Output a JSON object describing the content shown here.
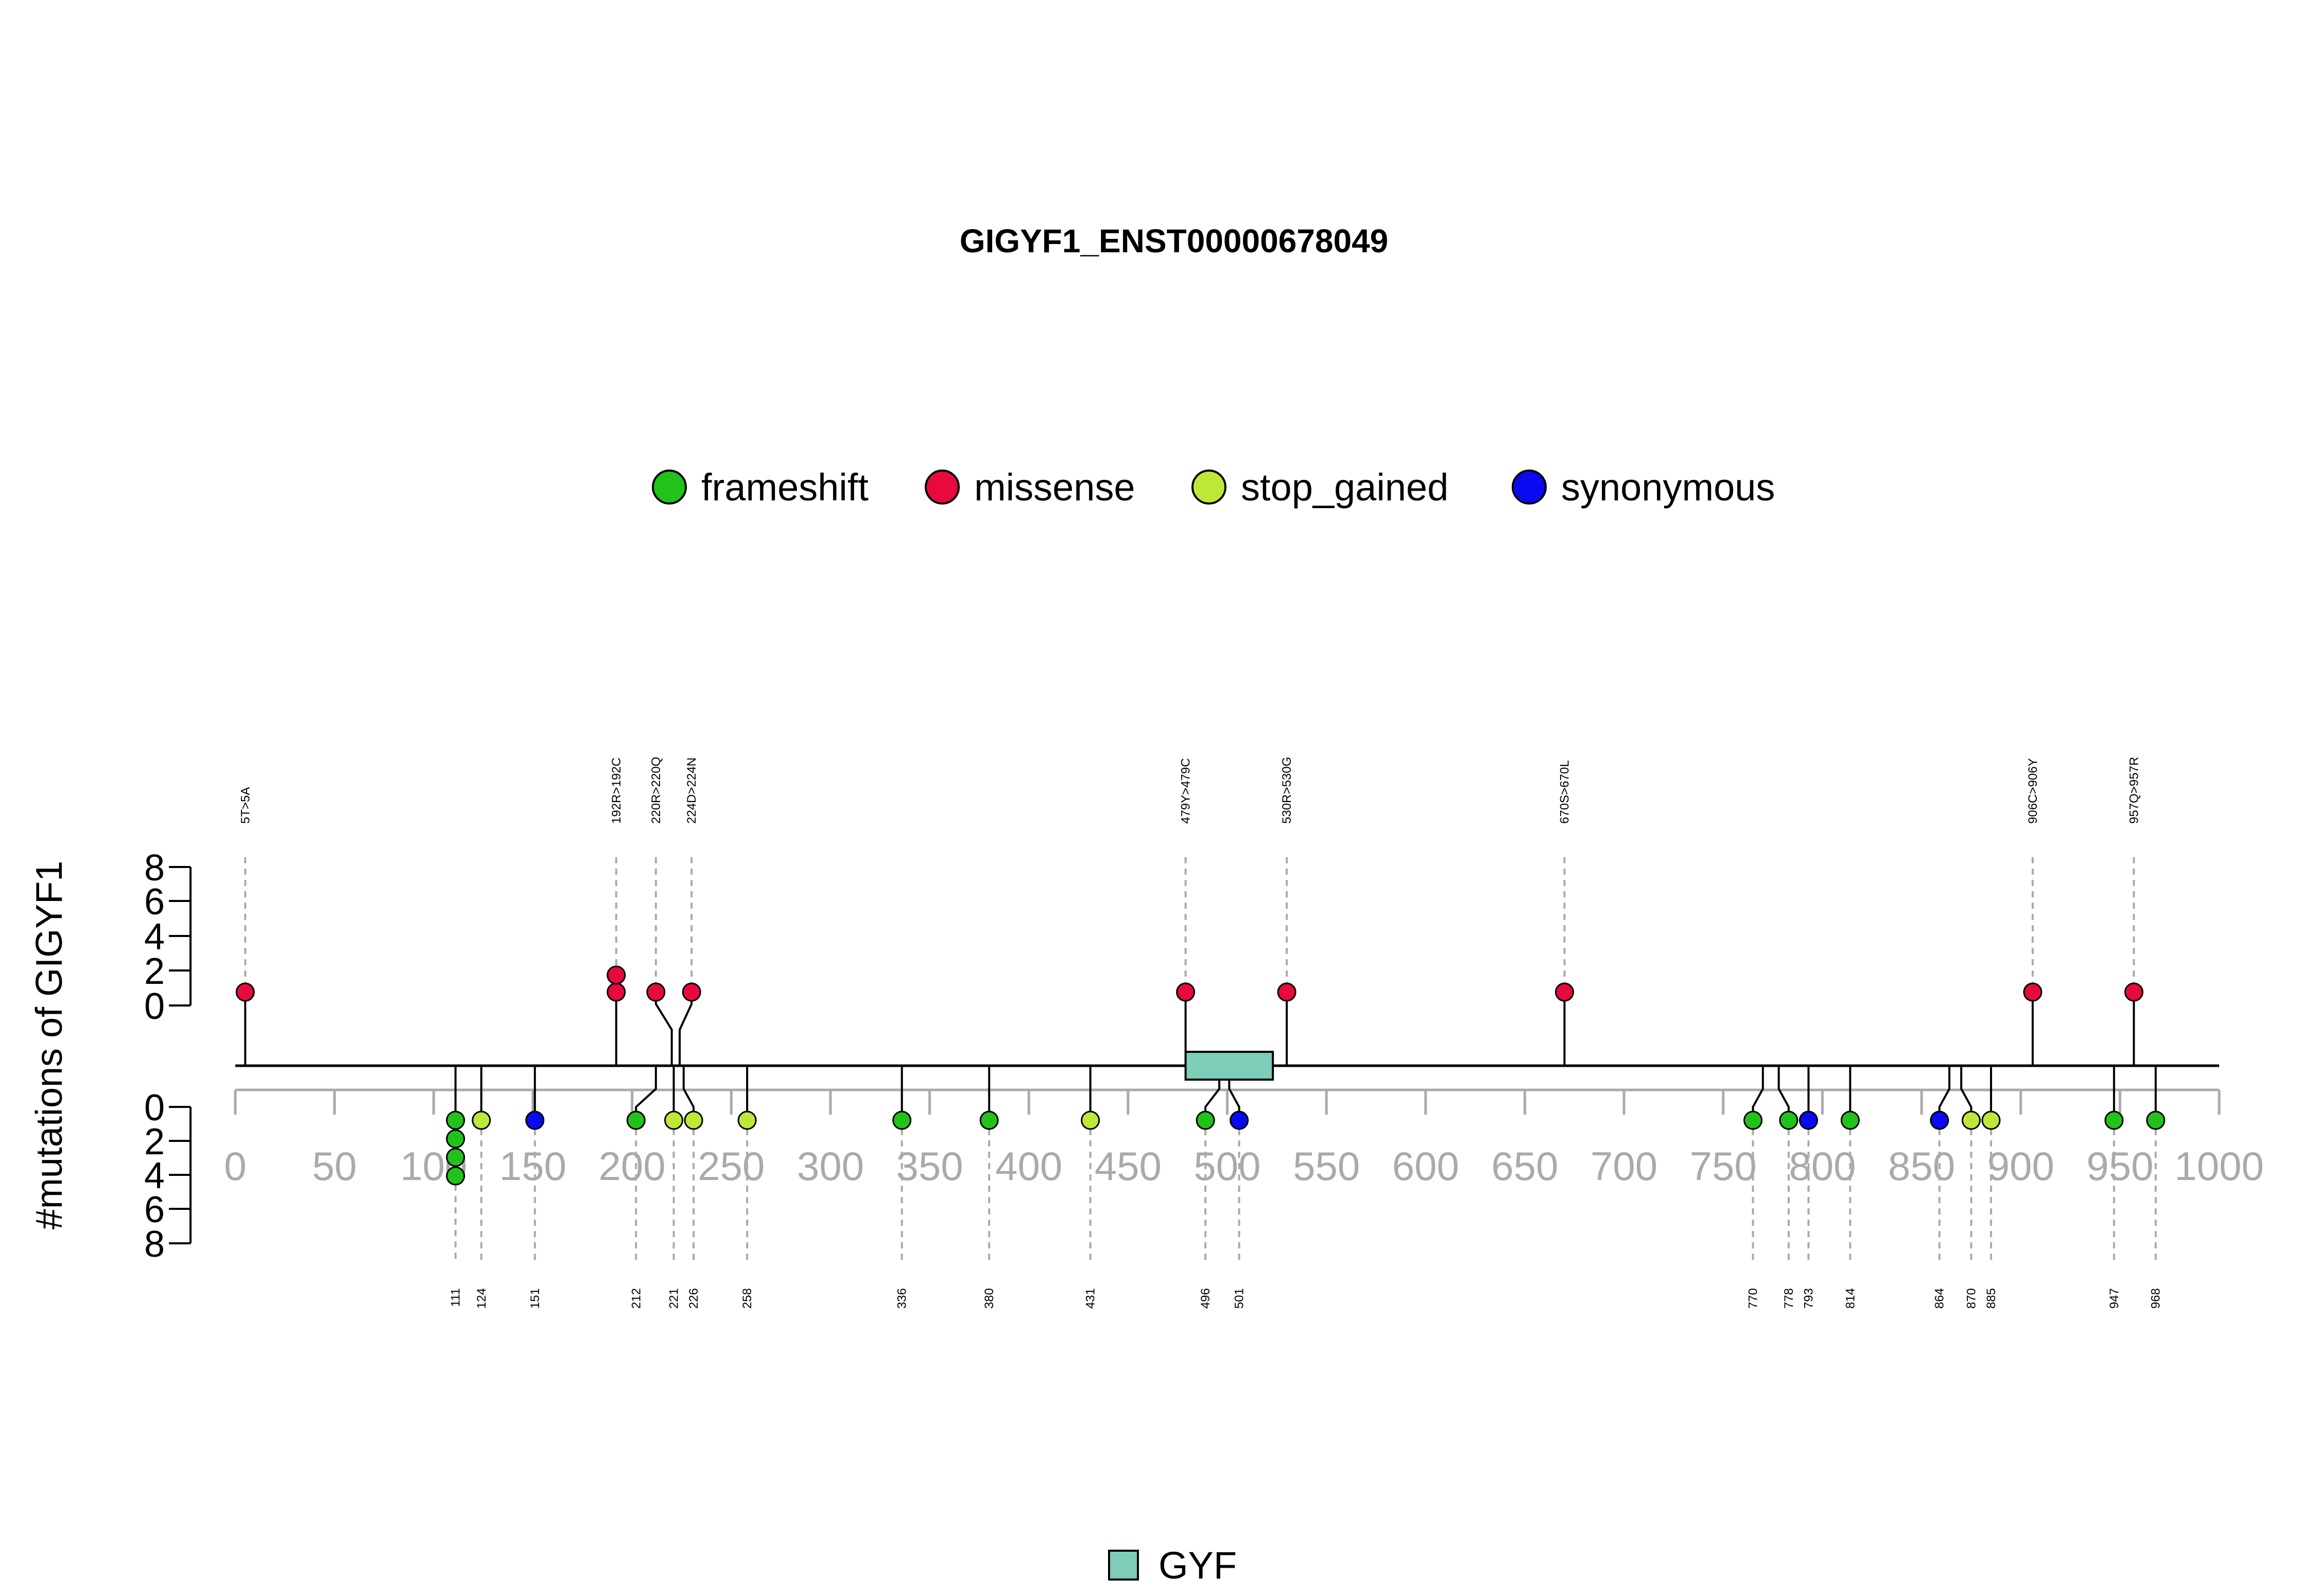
{
  "chart_data": {
    "type": "lollipop",
    "title": "GIGYF1_ENST00000678049",
    "ylabel": "#mutations of GIGYF1",
    "xlim": [
      0,
      1000
    ],
    "x_ticks": [
      "0",
      "50",
      "100",
      "150",
      "200",
      "250",
      "300",
      "350",
      "400",
      "450",
      "500",
      "550",
      "600",
      "650",
      "700",
      "750",
      "800",
      "850",
      "900",
      "950",
      "1000"
    ],
    "y_ticks_upper": [
      "0",
      "2",
      "4",
      "6",
      "8"
    ],
    "y_ticks_lower": [
      "0",
      "2",
      "4",
      "6",
      "8"
    ],
    "legend": [
      {
        "name": "frameshift",
        "color": "#22c21a"
      },
      {
        "name": "missense",
        "color": "#e8093f"
      },
      {
        "name": "stop_gained",
        "color": "#bde83a"
      },
      {
        "name": "synonymous",
        "color": "#0a0af0"
      }
    ],
    "domains": [
      {
        "name": "GYF",
        "start": 479,
        "end": 523,
        "color": "#7dcdb9"
      }
    ],
    "upper_mutations": [
      {
        "pos": 5,
        "label": "5T>5A",
        "type": "missense",
        "count": 1
      },
      {
        "pos": 192,
        "label": "192R>192C",
        "type": "missense",
        "count": 2
      },
      {
        "pos": 220,
        "label": "220R>220Q",
        "type": "missense",
        "count": 1
      },
      {
        "pos": 224,
        "label": "224D>224N",
        "type": "missense",
        "count": 1
      },
      {
        "pos": 479,
        "label": "479Y>479C",
        "type": "missense",
        "count": 1
      },
      {
        "pos": 530,
        "label": "530R>530G",
        "type": "missense",
        "count": 1
      },
      {
        "pos": 670,
        "label": "670S>670L",
        "type": "missense",
        "count": 1
      },
      {
        "pos": 906,
        "label": "906C>906Y",
        "type": "missense",
        "count": 1
      },
      {
        "pos": 957,
        "label": "957Q>957R",
        "type": "missense",
        "count": 1
      }
    ],
    "lower_mutations": [
      {
        "pos": 111,
        "label": "111",
        "type": "frameshift",
        "count": 4
      },
      {
        "pos": 124,
        "label": "124",
        "type": "stop_gained",
        "count": 1
      },
      {
        "pos": 151,
        "label": "151",
        "type": "synonymous",
        "count": 1
      },
      {
        "pos": 212,
        "label": "212",
        "type": "frameshift",
        "count": 1
      },
      {
        "pos": 221,
        "label": "221",
        "type": "stop_gained",
        "count": 1
      },
      {
        "pos": 226,
        "label": "226",
        "type": "stop_gained",
        "count": 1
      },
      {
        "pos": 258,
        "label": "258",
        "type": "stop_gained",
        "count": 1
      },
      {
        "pos": 336,
        "label": "336",
        "type": "frameshift",
        "count": 1
      },
      {
        "pos": 380,
        "label": "380",
        "type": "frameshift",
        "count": 1
      },
      {
        "pos": 431,
        "label": "431",
        "type": "stop_gained",
        "count": 1
      },
      {
        "pos": 496,
        "label": "496",
        "type": "frameshift",
        "count": 1
      },
      {
        "pos": 501,
        "label": "501",
        "type": "synonymous",
        "count": 1
      },
      {
        "pos": 770,
        "label": "770",
        "type": "frameshift",
        "count": 1
      },
      {
        "pos": 778,
        "label": "778",
        "type": "frameshift",
        "count": 1
      },
      {
        "pos": 793,
        "label": "793",
        "type": "synonymous",
        "count": 1
      },
      {
        "pos": 814,
        "label": "814",
        "type": "frameshift",
        "count": 1
      },
      {
        "pos": 864,
        "label": "864",
        "type": "synonymous",
        "count": 1
      },
      {
        "pos": 870,
        "label": "870",
        "type": "stop_gained",
        "count": 1
      },
      {
        "pos": 885,
        "label": "885",
        "type": "stop_gained",
        "count": 1
      },
      {
        "pos": 947,
        "label": "947",
        "type": "frameshift",
        "count": 1
      },
      {
        "pos": 968,
        "label": "968",
        "type": "frameshift",
        "count": 1
      }
    ]
  }
}
